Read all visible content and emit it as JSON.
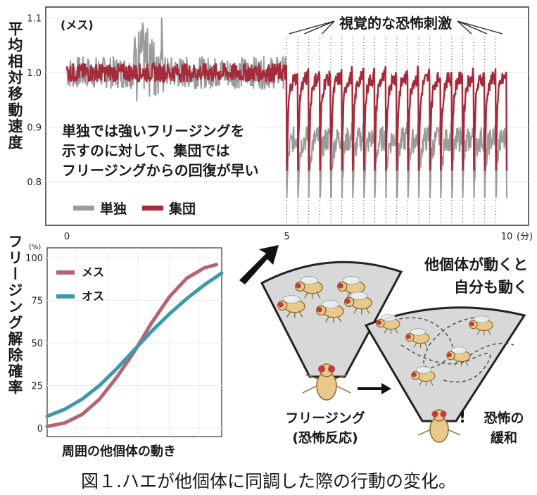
{
  "chart_data": [
    {
      "type": "line",
      "ylabel": "平均相対移動速度",
      "sex_label": "(メス)",
      "xlim": [
        0,
        10
      ],
      "ylim": [
        0.72,
        1.12
      ],
      "x_ticks": [
        "0",
        "5",
        "10"
      ],
      "x_unit": "(分)",
      "y_ticks": [
        "1.1",
        "1.0",
        "0.9",
        "0.8"
      ],
      "stimulus_label": "視覚的な恐怖刺激",
      "stimulus_onsets_min": [
        5.0,
        5.25,
        5.5,
        5.75,
        6.0,
        6.25,
        6.5,
        6.75,
        7.0,
        7.25,
        7.5,
        7.75,
        8.0,
        8.25,
        8.5,
        8.75,
        9.0,
        9.25,
        9.5,
        9.75
      ],
      "annotation": [
        "単独では強いフリージングを",
        "示すのに対して、集団では",
        "フリージングからの回復が早い"
      ],
      "series": [
        {
          "name": "単独",
          "color": "#9b9b9b",
          "baseline_0_5": 1.0,
          "trough_after_stimulus": 0.77,
          "recovery_level": 0.88
        },
        {
          "name": "集団",
          "color": "#a52a3a",
          "baseline_0_5": 1.0,
          "trough_after_stimulus": 0.82,
          "recovery_level": 0.99
        }
      ],
      "legend": [
        "単独",
        "集団"
      ]
    },
    {
      "type": "line",
      "ylabel": "フリージング解除確率",
      "y_unit": "(%)",
      "xlabel": "周囲の他個体の動き",
      "ylim": [
        0,
        100
      ],
      "y_ticks": [
        "100",
        "75",
        "50",
        "25",
        "0"
      ],
      "series": [
        {
          "name": "メス",
          "color": "#b56473",
          "x": [
            0,
            0.1,
            0.2,
            0.3,
            0.4,
            0.5,
            0.6,
            0.7,
            0.8,
            0.9,
            0.97
          ],
          "y": [
            1,
            3,
            8,
            17,
            30,
            45,
            62,
            77,
            88,
            94,
            96
          ]
        },
        {
          "name": "オス",
          "color": "#3c9aa8",
          "x": [
            0,
            0.1,
            0.2,
            0.3,
            0.4,
            0.5,
            0.6,
            0.7,
            0.8,
            0.9,
            1.0
          ],
          "y": [
            7,
            11,
            17,
            25,
            35,
            46,
            57,
            67,
            76,
            84,
            91
          ]
        }
      ]
    }
  ],
  "diagram": {
    "group_label": [
      "他個体が動くと",
      "自分も動く"
    ],
    "freeze_label": [
      "フリージング",
      "(恐怖反応)"
    ],
    "relief_label": [
      "恐怖の",
      "緩和"
    ],
    "exclamation": "!"
  },
  "caption": "図１.ハエが他個体に同調した際の行動の変化。"
}
